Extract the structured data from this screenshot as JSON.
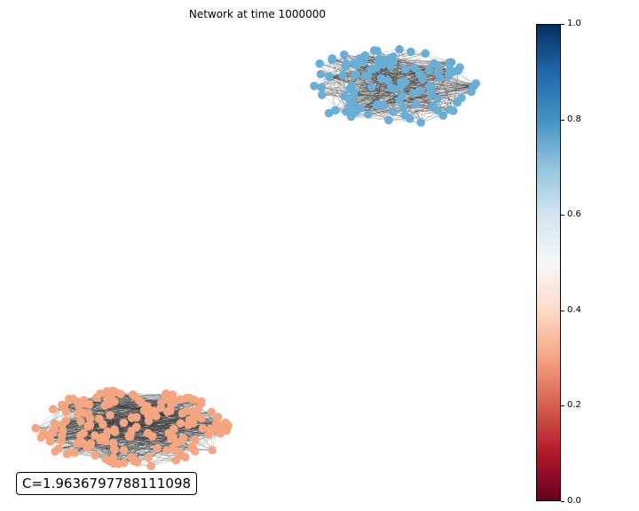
{
  "title": "Network at time 1000000",
  "coupling_label": "C=1.9636797788111098",
  "chart_data": {
    "type": "network",
    "communities": [
      {
        "node_value": 0.75,
        "color": "#6aaed6",
        "approx_nodes": 110
      },
      {
        "node_value": 0.3,
        "color": "#f4a582",
        "approx_nodes": 170
      }
    ],
    "colorbar": {
      "colormap": "RdBu",
      "range": [
        0.0,
        1.0
      ],
      "ticks": [
        "0.0",
        "0.2",
        "0.4",
        "0.6",
        "0.8",
        "1.0"
      ]
    }
  }
}
